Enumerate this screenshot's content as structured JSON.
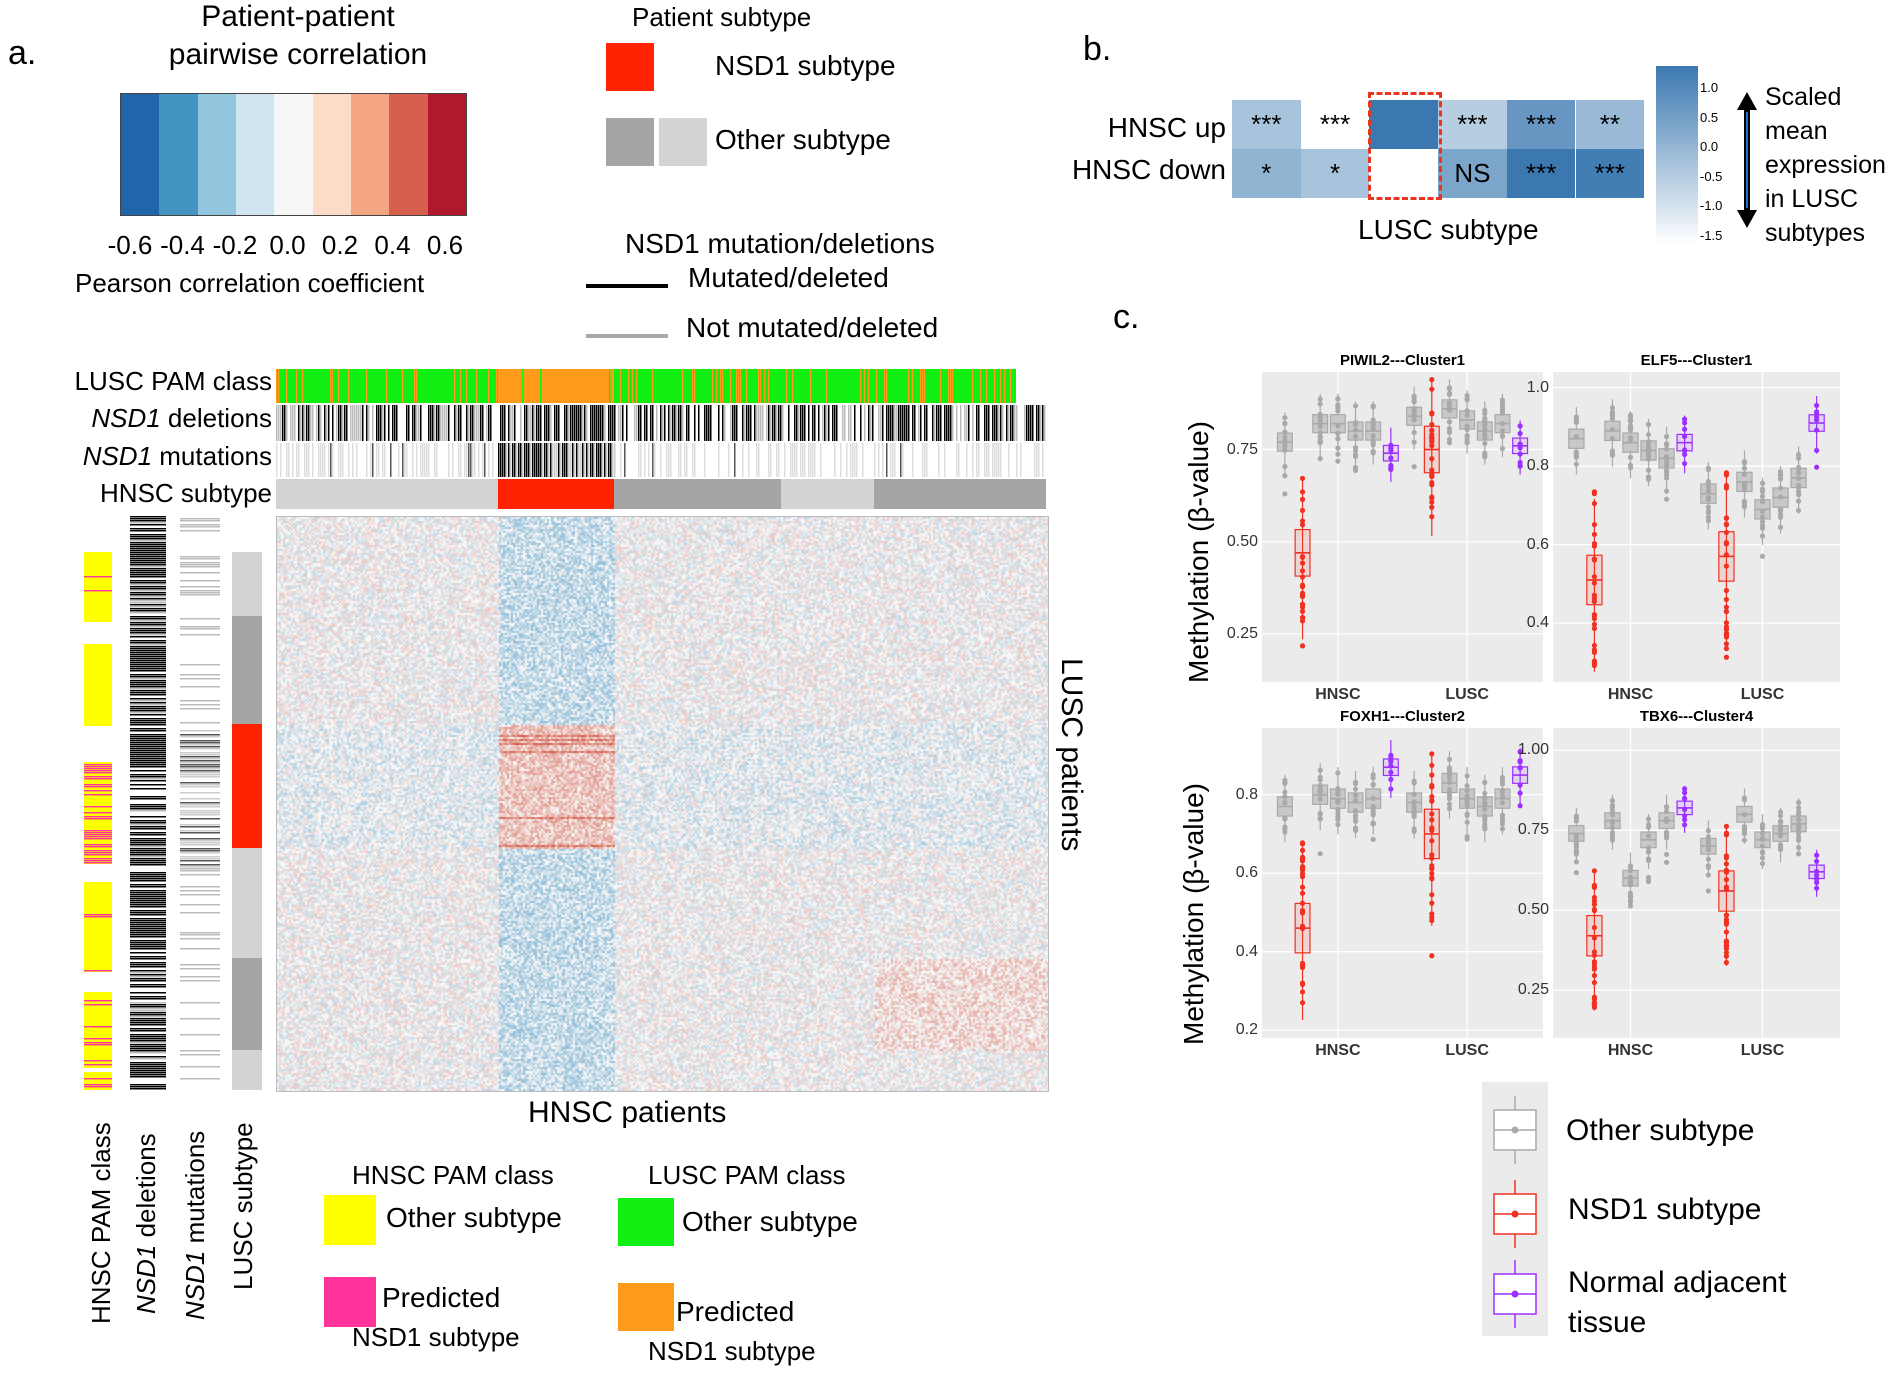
{
  "panel_a": {
    "letter": "a.",
    "colorbar": {
      "title_line1": "Patient-patient",
      "title_line2": "pairwise correlation",
      "colors": [
        "#2166ac",
        "#4393c3",
        "#92c5de",
        "#d1e5f0",
        "#f7f7f7",
        "#fddbc7",
        "#f4a582",
        "#d6604d",
        "#b2182b"
      ],
      "tick_labels": [
        "-0.6",
        "-0.4",
        "-0.2",
        "0.0",
        "0.2",
        "0.4",
        "0.6"
      ],
      "xlabel": "Pearson correlation coefficient"
    },
    "legend_subtype": {
      "title": "Patient subtype",
      "nsd1_label": "NSD1 subtype",
      "other_label": "Other subtype",
      "nsd1_color": "#ff2200",
      "other_colors": [
        "#a5a5a5",
        "#d3d3d3"
      ]
    },
    "legend_mutation": {
      "title": "NSD1 mutation/deletions",
      "mutated_label": "Mutated/deleted",
      "not_mutated_label": "Not mutated/deleted"
    },
    "track_labels": {
      "pam": "LUSC PAM class",
      "deletions_gene": "NSD1",
      "deletions_word": " deletions",
      "mutations_gene": "NSD1",
      "mutations_word": " mutations",
      "subtype": "HNSC subtype"
    },
    "left_track_labels": {
      "pam": "HNSC PAM class",
      "deletions_gene": "NSD1",
      "deletions_word": " deletions",
      "mutations_gene": "NSD1",
      "mutations_word": " mutations",
      "subtype": "LUSC subtype"
    },
    "x_axis_label": "HNSC patients",
    "y_axis_label": "LUSC patients",
    "pam_legends": {
      "hnsc": {
        "title": "HNSC PAM class",
        "other": "Other subtype",
        "predicted_line1": "Predicted",
        "predicted_line2": "NSD1 subtype",
        "other_color": "#ffff00",
        "predicted_color": "#ff3399"
      },
      "lusc": {
        "title": "LUSC PAM class",
        "other": "Other subtype",
        "predicted_line1": "Predicted",
        "predicted_line2": "NSD1 subtype",
        "other_color": "#11ee11",
        "predicted_color": "#ff9a1a"
      }
    }
  },
  "panel_b": {
    "letter": "b.",
    "rows": [
      "HNSC up",
      "HNSC down"
    ],
    "cells": [
      [
        "***",
        "***",
        "",
        "***",
        "***",
        "**"
      ],
      [
        "*",
        "*",
        "",
        "NS",
        "***",
        "***"
      ]
    ],
    "cell_values": [
      [
        -0.3,
        -1.5,
        1.2,
        -0.5,
        0.6,
        -0.1
      ],
      [
        0.0,
        -0.3,
        -1.5,
        0.3,
        1.2,
        1.1
      ]
    ],
    "xlabel": "LUSC subtype",
    "scale_ticks": [
      "1.0",
      "0.5",
      "0.0",
      "-0.5",
      "-1.0",
      "-1.5"
    ],
    "scale_label_lines": [
      "Scaled",
      "mean",
      "expression",
      "in LUSC",
      "subtypes"
    ]
  },
  "panel_c": {
    "letter": "c.",
    "ylabel": "Methylation (β-value)",
    "legend": [
      {
        "label": "Other subtype",
        "color": "#a9a9a9"
      },
      {
        "label": "NSD1 subtype",
        "color": "#f03020"
      },
      {
        "label_line1": "Normal adjacent",
        "label_line2": "tissue",
        "color": "#9b30ff"
      }
    ],
    "x_categories": [
      "HNSC",
      "LUSC"
    ],
    "colors": {
      "other": "#a9a9a9",
      "nsd1": "#f03020",
      "normal": "#9b30ff"
    },
    "plots": [
      {
        "title": "PIWIL2---Cluster1",
        "yticks": [
          "0.75",
          "0.50",
          "0.25"
        ],
        "hnsc": [
          {
            "t": "o",
            "m": 0.77
          },
          {
            "t": "n",
            "m": 0.47
          },
          {
            "t": "o",
            "m": 0.82
          },
          {
            "t": "o",
            "m": 0.82
          },
          {
            "t": "o",
            "m": 0.8
          },
          {
            "t": "o",
            "m": 0.8
          },
          {
            "t": "p",
            "m": 0.74
          }
        ],
        "lusc": [
          {
            "t": "o",
            "m": 0.84
          },
          {
            "t": "n",
            "m": 0.75
          },
          {
            "t": "o",
            "m": 0.86
          },
          {
            "t": "o",
            "m": 0.83
          },
          {
            "t": "o",
            "m": 0.8
          },
          {
            "t": "o",
            "m": 0.82
          },
          {
            "t": "p",
            "m": 0.76
          }
        ]
      },
      {
        "title": "ELF5---Cluster1",
        "yticks": [
          "1.0",
          "0.8",
          "0.6",
          "0.4"
        ],
        "hnsc": [
          {
            "t": "o",
            "m": 0.87
          },
          {
            "t": "n",
            "m": 0.51
          },
          {
            "t": "o",
            "m": 0.89
          },
          {
            "t": "o",
            "m": 0.86
          },
          {
            "t": "o",
            "m": 0.84
          },
          {
            "t": "o",
            "m": 0.82
          },
          {
            "t": "p",
            "m": 0.86
          }
        ],
        "lusc": [
          {
            "t": "o",
            "m": 0.73
          },
          {
            "t": "n",
            "m": 0.57
          },
          {
            "t": "o",
            "m": 0.76
          },
          {
            "t": "o",
            "m": 0.69
          },
          {
            "t": "o",
            "m": 0.72
          },
          {
            "t": "o",
            "m": 0.77
          },
          {
            "t": "p",
            "m": 0.91
          }
        ]
      },
      {
        "title": "FOXH1---Cluster2",
        "yticks": [
          "0.8",
          "0.6",
          "0.4",
          "0.2"
        ],
        "hnsc": [
          {
            "t": "o",
            "m": 0.77
          },
          {
            "t": "n",
            "m": 0.46
          },
          {
            "t": "o",
            "m": 0.8
          },
          {
            "t": "o",
            "m": 0.79
          },
          {
            "t": "o",
            "m": 0.78
          },
          {
            "t": "o",
            "m": 0.79
          },
          {
            "t": "p",
            "m": 0.87
          }
        ],
        "lusc": [
          {
            "t": "o",
            "m": 0.78
          },
          {
            "t": "n",
            "m": 0.7
          },
          {
            "t": "o",
            "m": 0.83
          },
          {
            "t": "o",
            "m": 0.79
          },
          {
            "t": "o",
            "m": 0.77
          },
          {
            "t": "o",
            "m": 0.79
          },
          {
            "t": "p",
            "m": 0.85
          }
        ]
      },
      {
        "title": "TBX6---Cluster4",
        "yticks": [
          "1.00",
          "0.75",
          "0.50",
          "0.25"
        ],
        "hnsc": [
          {
            "t": "o",
            "m": 0.74
          },
          {
            "t": "n",
            "m": 0.42
          },
          {
            "t": "o",
            "m": 0.78
          },
          {
            "t": "o",
            "m": 0.6
          },
          {
            "t": "o",
            "m": 0.72
          },
          {
            "t": "o",
            "m": 0.78
          },
          {
            "t": "p",
            "m": 0.82
          }
        ],
        "lusc": [
          {
            "t": "o",
            "m": 0.7
          },
          {
            "t": "n",
            "m": 0.56
          },
          {
            "t": "o",
            "m": 0.8
          },
          {
            "t": "o",
            "m": 0.72
          },
          {
            "t": "o",
            "m": 0.74
          },
          {
            "t": "o",
            "m": 0.77
          },
          {
            "t": "p",
            "m": 0.62
          }
        ]
      }
    ]
  }
}
